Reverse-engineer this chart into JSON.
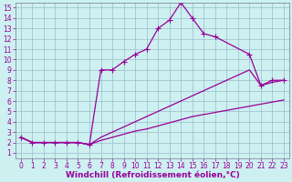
{
  "xlabel": "Windchill (Refroidissement éolien,°C)",
  "background_color": "#cdf0f0",
  "line_color": "#990099",
  "xlim": [
    -0.5,
    23.5
  ],
  "ylim": [
    0.5,
    15.5
  ],
  "xticks": [
    0,
    1,
    2,
    3,
    4,
    5,
    6,
    7,
    8,
    9,
    10,
    11,
    12,
    13,
    14,
    15,
    16,
    17,
    18,
    19,
    20,
    21,
    22,
    23
  ],
  "yticks": [
    1,
    2,
    3,
    4,
    5,
    6,
    7,
    8,
    9,
    10,
    11,
    12,
    13,
    14,
    15
  ],
  "line1_x": [
    0,
    1,
    2,
    3,
    4,
    5,
    6,
    7,
    8,
    9,
    10,
    11,
    12,
    13,
    14,
    15,
    16,
    17,
    20,
    21,
    22,
    23
  ],
  "line1_y": [
    2.5,
    2.0,
    2.0,
    2.0,
    2.0,
    2.0,
    1.8,
    9.0,
    9.0,
    9.8,
    10.5,
    11.0,
    13.0,
    13.8,
    15.5,
    14.0,
    12.5,
    12.2,
    10.5,
    7.5,
    8.0,
    8.0
  ],
  "line2_x": [
    0,
    1,
    2,
    3,
    4,
    5,
    6,
    7,
    8,
    9,
    10,
    11,
    12,
    13,
    14,
    15,
    16,
    17,
    18,
    19,
    20,
    21,
    22,
    23
  ],
  "line2_y": [
    2.5,
    2.0,
    2.0,
    2.0,
    2.0,
    2.0,
    1.8,
    2.5,
    3.0,
    3.5,
    4.0,
    4.5,
    5.0,
    5.5,
    6.0,
    6.5,
    7.0,
    7.5,
    8.0,
    8.5,
    9.0,
    7.5,
    7.8,
    8.0
  ],
  "line3_x": [
    0,
    1,
    2,
    3,
    4,
    5,
    6,
    7,
    8,
    9,
    10,
    11,
    12,
    13,
    14,
    15,
    16,
    17,
    18,
    19,
    20,
    21,
    22,
    23
  ],
  "line3_y": [
    2.5,
    2.0,
    2.0,
    2.0,
    2.0,
    2.0,
    1.8,
    2.2,
    2.5,
    2.8,
    3.1,
    3.3,
    3.6,
    3.9,
    4.2,
    4.5,
    4.7,
    4.9,
    5.1,
    5.3,
    5.5,
    5.7,
    5.9,
    6.1
  ],
  "grid_color": "#99bbcc",
  "marker": "+",
  "markersize": 4,
  "linewidth": 0.9,
  "xlabel_fontsize": 6.5,
  "tick_fontsize": 5.5
}
